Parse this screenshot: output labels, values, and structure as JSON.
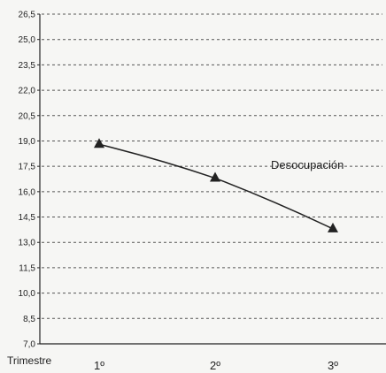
{
  "chart_data": {
    "type": "line",
    "title": "",
    "xlabel": "Trimestre",
    "ylabel": "",
    "categories": [
      "1º",
      "2º",
      "3º"
    ],
    "series": [
      {
        "name": "Desocupación",
        "values": [
          18.8,
          16.8,
          13.8
        ],
        "color": "#222222",
        "marker": "triangle"
      }
    ],
    "yticks": [
      "7,0",
      "8,5",
      "10,0",
      "11,5",
      "13,0",
      "14,5",
      "16,0",
      "17,5",
      "19,0",
      "20,5",
      "22,0",
      "23,5",
      "25,0",
      "26,5"
    ],
    "ylim": [
      7.0,
      26.5
    ],
    "grid": "dashed-horizontal",
    "colors": {
      "background": "#f6f6f4",
      "ink": "#222222",
      "grid": "#555555"
    }
  }
}
